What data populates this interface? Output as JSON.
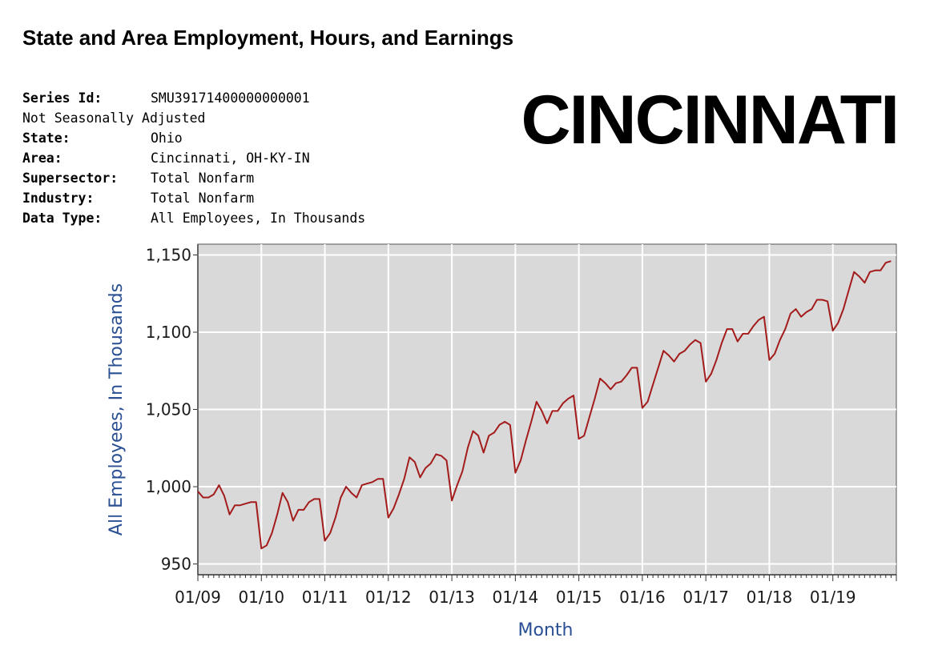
{
  "header": {
    "title": "State and Area Employment, Hours, and Earnings",
    "city": "CINCINNATI"
  },
  "series_info": {
    "series_id_label": "Series Id:",
    "series_id": "SMU39171400000000001",
    "seasonal": "Not Seasonally Adjusted",
    "state_label": "State:",
    "state": "Ohio",
    "area_label": "Area:",
    "area": "Cincinnati, OH-KY-IN",
    "supersector_label": "Supersector:",
    "supersector": "Total Nonfarm",
    "industry_label": "Industry:",
    "industry": "Total Nonfarm",
    "data_type_label": "Data Type:",
    "data_type": "All Employees, In Thousands"
  },
  "chart_data": {
    "type": "line",
    "xlabel": "Month",
    "ylabel": "All Employees, In Thousands",
    "ylim": [
      943,
      1157
    ],
    "yticks": [
      950,
      1000,
      1050,
      1100,
      1150
    ],
    "ytick_labels": [
      "950",
      "1,000",
      "1,050",
      "1,100",
      "1,150"
    ],
    "xticks": [
      "01/09",
      "01/10",
      "01/11",
      "01/12",
      "01/13",
      "01/14",
      "01/15",
      "01/16",
      "01/17",
      "01/18",
      "01/19"
    ],
    "x_range": [
      "01/09",
      "12/19"
    ],
    "grid": true,
    "line_color": "#a31b1b",
    "plot_bg": "#d9d9d9",
    "series": [
      {
        "start": "01/09",
        "values": [
          997,
          993,
          993,
          995,
          1001,
          994,
          982,
          988,
          988,
          989,
          990,
          990,
          960,
          962,
          970,
          982,
          996,
          990,
          978,
          985,
          985,
          990,
          992,
          992,
          965,
          970,
          980,
          993,
          1000,
          996,
          993,
          1001,
          1002,
          1003,
          1005,
          1005,
          980,
          986,
          995,
          1005,
          1019,
          1016,
          1006,
          1012,
          1015,
          1021,
          1020,
          1017,
          991,
          1001,
          1010,
          1025,
          1036,
          1033,
          1022,
          1033,
          1035,
          1040,
          1042,
          1040,
          1009,
          1017,
          1030,
          1042,
          1055,
          1049,
          1041,
          1049,
          1049,
          1054,
          1057,
          1059,
          1031,
          1033,
          1045,
          1057,
          1070,
          1067,
          1063,
          1067,
          1068,
          1072,
          1077,
          1077,
          1051,
          1055,
          1066,
          1077,
          1088,
          1085,
          1081,
          1086,
          1088,
          1092,
          1095,
          1093,
          1068,
          1073,
          1082,
          1093,
          1102,
          1102,
          1094,
          1099,
          1099,
          1104,
          1108,
          1110,
          1082,
          1086,
          1095,
          1102,
          1112,
          1115,
          1110,
          1113,
          1115,
          1121,
          1121,
          1120,
          1101,
          1106,
          1115,
          1127,
          1139,
          1136,
          1132,
          1139,
          1140,
          1140,
          1145,
          1146
        ]
      }
    ]
  }
}
